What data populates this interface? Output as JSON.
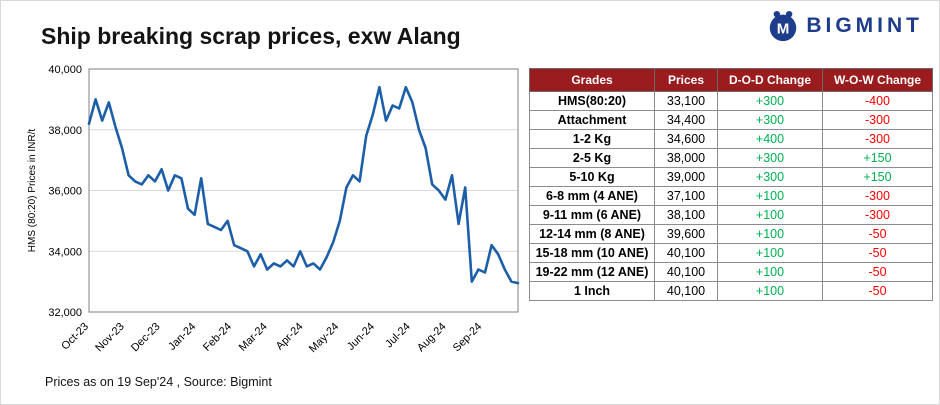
{
  "title": "Ship breaking scrap prices, exw Alang",
  "logo": {
    "text": "BIGMINT"
  },
  "footer": "Prices as on 19 Sep'24 , Source: Bigmint",
  "colors": {
    "line": "#1c5fa8",
    "positive": "#00b050",
    "negative": "#ff0000",
    "header_bg": "#9b1c1f",
    "logo_blue": "#1e3c8c"
  },
  "chart_data": {
    "type": "line",
    "title": "",
    "xlabel": "",
    "ylabel": "HMS (80:20) Prices in INR/t",
    "ylim": [
      32000,
      40000
    ],
    "yticks": [
      32000,
      34000,
      36000,
      38000,
      40000
    ],
    "grid": "horizontal",
    "legend": "none",
    "categories": [
      "Oct-23",
      "Nov-23",
      "Dec-23",
      "Jan-24",
      "Feb-24",
      "Mar-24",
      "Apr-24",
      "May-24",
      "Jun-24",
      "Jul-24",
      "Aug-24",
      "Sep-24"
    ],
    "series": [
      {
        "name": "HMS (80:20) Prices in INR/t",
        "values": [
          38200,
          39000,
          38300,
          38900,
          38100,
          37400,
          36500,
          36300,
          36200,
          36500,
          36300,
          36700,
          36000,
          36500,
          36400,
          35400,
          35200,
          36400,
          34900,
          34800,
          34700,
          35000,
          34200,
          34100,
          34000,
          33500,
          33900,
          33400,
          33600,
          33500,
          33700,
          33500,
          34000,
          33500,
          33600,
          33400,
          33800,
          34300,
          35000,
          36100,
          36500,
          36300,
          37800,
          38500,
          39400,
          38300,
          38800,
          38700,
          39400,
          38900,
          38000,
          37400,
          36200,
          36000,
          35700,
          36500,
          34900,
          36100,
          33000,
          33400,
          33300,
          34200,
          33900,
          33400,
          33000,
          32950
        ]
      }
    ]
  },
  "table": {
    "headers": [
      "Grades",
      "Prices",
      "D-O-D Change",
      "W-O-W Change"
    ],
    "rows": [
      {
        "grade": "HMS(80:20)",
        "price": "33,100",
        "dod": "+300",
        "wow": "-400"
      },
      {
        "grade": "Attachment",
        "price": "34,400",
        "dod": "+300",
        "wow": "-300"
      },
      {
        "grade": "1-2 Kg",
        "price": "34,600",
        "dod": "+400",
        "wow": "-300"
      },
      {
        "grade": "2-5 Kg",
        "price": "38,000",
        "dod": "+300",
        "wow": "+150"
      },
      {
        "grade": "5-10 Kg",
        "price": "39,000",
        "dod": "+300",
        "wow": "+150"
      },
      {
        "grade": "6-8 mm (4 ANE)",
        "price": "37,100",
        "dod": "+100",
        "wow": "-300"
      },
      {
        "grade": "9-11 mm (6 ANE)",
        "price": "38,100",
        "dod": "+100",
        "wow": "-300"
      },
      {
        "grade": "12-14 mm (8 ANE)",
        "price": "39,600",
        "dod": "+100",
        "wow": "-50"
      },
      {
        "grade": "15-18 mm (10 ANE)",
        "price": "40,100",
        "dod": "+100",
        "wow": "-50"
      },
      {
        "grade": "19-22 mm (12 ANE)",
        "price": "40,100",
        "dod": "+100",
        "wow": "-50"
      },
      {
        "grade": "1 Inch",
        "price": "40,100",
        "dod": "+100",
        "wow": "-50"
      }
    ]
  }
}
